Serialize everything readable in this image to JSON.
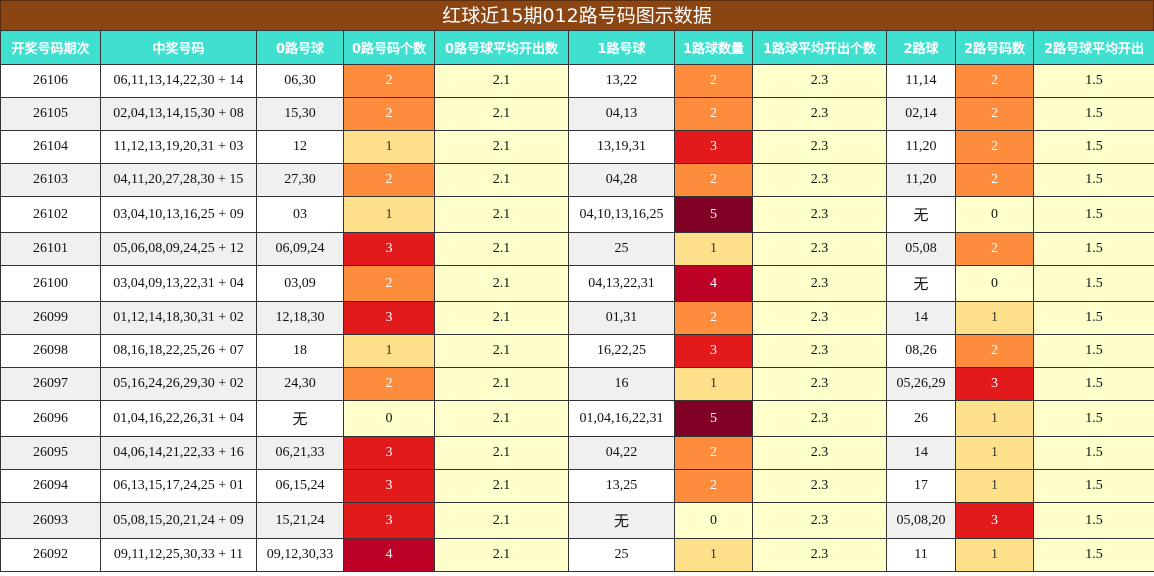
{
  "title": "红球近15期012路号码图示数据",
  "headers": [
    "开奖号码期次",
    "中奖号码",
    "0路号球",
    "0路号码个数",
    "0路号球平均开出数",
    "1路号球",
    "1路球数量",
    "1路球平均开出个数",
    "2路球",
    "2路号码数",
    "2路号球平均开出"
  ],
  "rows": [
    [
      "26106",
      "06,11,13,14,22,30 + 14",
      "06,30",
      "2",
      "2.1",
      "13,22",
      "2",
      "2.3",
      "11,14",
      "2",
      "1.5"
    ],
    [
      "26105",
      "02,04,13,14,15,30 + 08",
      "15,30",
      "2",
      "2.1",
      "04,13",
      "2",
      "2.3",
      "02,14",
      "2",
      "1.5"
    ],
    [
      "26104",
      "11,12,13,19,20,31 + 03",
      "12",
      "1",
      "2.1",
      "13,19,31",
      "3",
      "2.3",
      "11,20",
      "2",
      "1.5"
    ],
    [
      "26103",
      "04,11,20,27,28,30 + 15",
      "27,30",
      "2",
      "2.1",
      "04,28",
      "2",
      "2.3",
      "11,20",
      "2",
      "1.5"
    ],
    [
      "26102",
      "03,04,10,13,16,25 + 09",
      "03",
      "1",
      "2.1",
      "04,10,13,16,25",
      "5",
      "2.3",
      "无",
      "0",
      "1.5"
    ],
    [
      "26101",
      "05,06,08,09,24,25 + 12",
      "06,09,24",
      "3",
      "2.1",
      "25",
      "1",
      "2.3",
      "05,08",
      "2",
      "1.5"
    ],
    [
      "26100",
      "03,04,09,13,22,31 + 04",
      "03,09",
      "2",
      "2.1",
      "04,13,22,31",
      "4",
      "2.3",
      "无",
      "0",
      "1.5"
    ],
    [
      "26099",
      "01,12,14,18,30,31 + 02",
      "12,18,30",
      "3",
      "2.1",
      "01,31",
      "2",
      "2.3",
      "14",
      "1",
      "1.5"
    ],
    [
      "26098",
      "08,16,18,22,25,26 + 07",
      "18",
      "1",
      "2.1",
      "16,22,25",
      "3",
      "2.3",
      "08,26",
      "2",
      "1.5"
    ],
    [
      "26097",
      "05,16,24,26,29,30 + 02",
      "24,30",
      "2",
      "2.1",
      "16",
      "1",
      "2.3",
      "05,26,29",
      "3",
      "1.5"
    ],
    [
      "26096",
      "01,04,16,22,26,31 + 04",
      "无",
      "0",
      "2.1",
      "01,04,16,22,31",
      "5",
      "2.3",
      "26",
      "1",
      "1.5"
    ],
    [
      "26095",
      "04,06,14,21,22,33 + 16",
      "06,21,33",
      "3",
      "2.1",
      "04,22",
      "2",
      "2.3",
      "14",
      "1",
      "1.5"
    ],
    [
      "26094",
      "06,13,15,17,24,25 + 01",
      "06,15,24",
      "3",
      "2.1",
      "13,25",
      "2",
      "2.3",
      "17",
      "1",
      "1.5"
    ],
    [
      "26093",
      "05,08,15,20,21,24 + 09",
      "15,21,24",
      "3",
      "2.1",
      "无",
      "0",
      "2.3",
      "05,08,20",
      "3",
      "1.5"
    ],
    [
      "26092",
      "09,11,12,25,30,33 + 11",
      "09,12,30,33",
      "4",
      "2.1",
      "25",
      "1",
      "2.3",
      "11",
      "1",
      "1.5"
    ]
  ]
}
